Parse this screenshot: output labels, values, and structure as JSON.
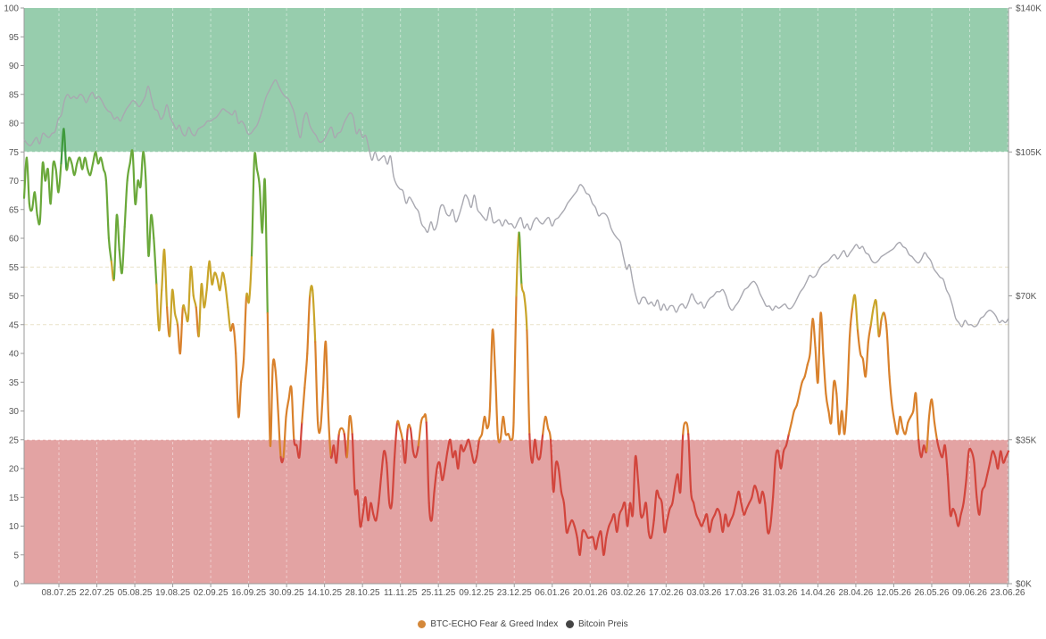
{
  "chart_data": {
    "type": "line",
    "title": "",
    "xlabel": "",
    "ylabel": "",
    "ylim": [
      0,
      100
    ],
    "y2lim": [
      0,
      140000
    ],
    "x_tick_labels": [
      "08.07.25",
      "22.07.25",
      "05.08.25",
      "19.08.25",
      "02.09.25",
      "16.09.25",
      "30.09.25",
      "14.10.25",
      "28.10.25",
      "11.11.25",
      "25.11.25",
      "09.12.25",
      "23.12.25",
      "06.01.26",
      "20.01.26",
      "03.02.26",
      "17.02.26",
      "03.03.26",
      "17.03.26",
      "31.03.26",
      "14.04.26",
      "28.04.26",
      "12.05.26",
      "26.05.26",
      "09.06.26",
      "23.06.26"
    ],
    "y_tick_labels": [
      "0",
      "5",
      "10",
      "15",
      "20",
      "25",
      "30",
      "35",
      "40",
      "45",
      "50",
      "55",
      "60",
      "65",
      "70",
      "75",
      "80",
      "85",
      "90",
      "95",
      "100"
    ],
    "y2_tick_labels": [
      "$0K",
      "$35K",
      "$70K",
      "$105K",
      "$140K"
    ],
    "zones": [
      {
        "from": 0,
        "to": 25,
        "color": "#e3a3a3"
      },
      {
        "from": 75,
        "to": 100,
        "color": "#97cdad"
      }
    ],
    "guides": [
      45,
      55
    ],
    "legend_position": "bottom-center",
    "series": [
      {
        "name": "BTC-ECHO Fear & Greed Index",
        "axis": "left",
        "marker_color": "#d4883a",
        "values": [
          67,
          74,
          66,
          65,
          68,
          64,
          63,
          73,
          70,
          72,
          66,
          73,
          72,
          68,
          73,
          79,
          72,
          74,
          73,
          71,
          73,
          74,
          72,
          74,
          72,
          71,
          73,
          75,
          73,
          74,
          72,
          70,
          60,
          56,
          53,
          64,
          58,
          54,
          62,
          70,
          73,
          75,
          66,
          70,
          69,
          75,
          70,
          57,
          64,
          60,
          52,
          44,
          51,
          58,
          48,
          43,
          51,
          47,
          45,
          40,
          48,
          47,
          46,
          55,
          50,
          48,
          43,
          52,
          48,
          51,
          56,
          52,
          54,
          53,
          51,
          54,
          52,
          48,
          44,
          45,
          40,
          29,
          35,
          39,
          50,
          49,
          57,
          74,
          72,
          69,
          61,
          70,
          47,
          24,
          38,
          37,
          30,
          22,
          22,
          29,
          32,
          34,
          25,
          24,
          22,
          28,
          34,
          40,
          50,
          51,
          42,
          28,
          27,
          34,
          42,
          29,
          22,
          24,
          21,
          26,
          27,
          26,
          22,
          29,
          26,
          16,
          16,
          10,
          12,
          15,
          11,
          14,
          12,
          11,
          14,
          19,
          23,
          21,
          14,
          14,
          22,
          28,
          27,
          25,
          21,
          27,
          27,
          23,
          22,
          24,
          28,
          29,
          28,
          14,
          11,
          16,
          20,
          21,
          18,
          20,
          23,
          25,
          22,
          23,
          20,
          24,
          23,
          24,
          25,
          23,
          21,
          22,
          25,
          26,
          29,
          27,
          30,
          44,
          37,
          26,
          25,
          29,
          26,
          26,
          25,
          28,
          50,
          61,
          52,
          50,
          44,
          26,
          21,
          25,
          22,
          22,
          26,
          29,
          27,
          25,
          16,
          21,
          20,
          16,
          14,
          9,
          10,
          11,
          10,
          8,
          5,
          9,
          9,
          8,
          8,
          8,
          6,
          8,
          9,
          5,
          8,
          10,
          11,
          12,
          9,
          12,
          13,
          14,
          10,
          14,
          12,
          22,
          18,
          12,
          12,
          14,
          9,
          8,
          11,
          16,
          15,
          14,
          9,
          11,
          13,
          14,
          17,
          19,
          16,
          26,
          28,
          26,
          16,
          14,
          12,
          11,
          10,
          11,
          12,
          9,
          11,
          12,
          13,
          12,
          9,
          12,
          10,
          11,
          12,
          14,
          16,
          14,
          12,
          13,
          14,
          15,
          17,
          16,
          14,
          16,
          14,
          9,
          10,
          15,
          22,
          23,
          20,
          23,
          24,
          26,
          28,
          30,
          31,
          33,
          35,
          36,
          38,
          40,
          46,
          41,
          35,
          47,
          40,
          33,
          30,
          28,
          35,
          33,
          26,
          30,
          26,
          32,
          43,
          48,
          50,
          44,
          40,
          39,
          36,
          42,
          45,
          48,
          49,
          43,
          46,
          47,
          44,
          36,
          31,
          28,
          26,
          29,
          27,
          26,
          28,
          29,
          30,
          33,
          25,
          22,
          24,
          23,
          29,
          32,
          28,
          25,
          23,
          22,
          24,
          19,
          12,
          13,
          12,
          10,
          12,
          14,
          18,
          23,
          23,
          21,
          15,
          12,
          16,
          17,
          19,
          21,
          23,
          22,
          20,
          23,
          21,
          22,
          23
        ]
      },
      {
        "name": "Bitcoin Preis",
        "axis": "right",
        "marker_color": "#444444",
        "values": [
          108000,
          107000,
          106500,
          107500,
          108500,
          107000,
          109500,
          109000,
          108500,
          109500,
          110000,
          113000,
          114000,
          117500,
          119000,
          118000,
          118500,
          118000,
          119000,
          118500,
          117000,
          118500,
          119500,
          118000,
          118500,
          117500,
          116000,
          115000,
          114500,
          113000,
          113500,
          112500,
          114000,
          115500,
          116500,
          117500,
          117000,
          116000,
          117000,
          118500,
          121000,
          118000,
          115500,
          115000,
          113000,
          114000,
          116500,
          113500,
          112000,
          110500,
          111500,
          109500,
          109000,
          111000,
          109500,
          109000,
          110500,
          111000,
          111500,
          112500,
          112500,
          113000,
          113500,
          114500,
          115500,
          115000,
          114500,
          114000,
          115000,
          112000,
          112500,
          111500,
          109500,
          109500,
          110500,
          111500,
          113500,
          116000,
          118500,
          120000,
          121500,
          122500,
          121000,
          119500,
          118500,
          118000,
          116500,
          114500,
          111000,
          108500,
          113000,
          114500,
          111500,
          110000,
          109000,
          107500,
          107500,
          108500,
          110000,
          111000,
          108500,
          109500,
          110000,
          112000,
          113500,
          114500,
          113500,
          109500,
          110500,
          108500,
          109000,
          106000,
          103000,
          105000,
          103000,
          103500,
          104000,
          102000,
          104000,
          99000,
          97000,
          96000,
          95500,
          92500,
          94000,
          93000,
          91500,
          90500,
          87500,
          86500,
          85500,
          88000,
          86000,
          87500,
          91500,
          92000,
          90000,
          89500,
          91000,
          88000,
          89500,
          92000,
          94500,
          93500,
          91500,
          94500,
          91000,
          90000,
          89000,
          88500,
          91500,
          88000,
          88000,
          88500,
          87000,
          88500,
          87500,
          87500,
          86500,
          88000,
          89000,
          86500,
          87500,
          86000,
          88000,
          89000,
          88000,
          87500,
          88500,
          89000,
          87000,
          88500,
          89000,
          90000,
          91000,
          92500,
          93500,
          94500,
          95500,
          97000,
          96500,
          95000,
          94500,
          92500,
          91500,
          89500,
          90000,
          90000,
          89000,
          86500,
          85000,
          84000,
          83000,
          79500,
          76500,
          77500,
          73500,
          70000,
          68000,
          69500,
          69500,
          68000,
          68500,
          67500,
          69000,
          66500,
          68000,
          66500,
          67500,
          67500,
          66000,
          67500,
          68000,
          67000,
          68500,
          70500,
          69000,
          68000,
          68500,
          67000,
          68500,
          69500,
          70000,
          71000,
          71000,
          71500,
          70000,
          67500,
          66500,
          67500,
          68500,
          70000,
          71500,
          72000,
          73000,
          73500,
          72500,
          70500,
          69000,
          67500,
          67500,
          66500,
          67500,
          67000,
          67500,
          68000,
          67000,
          67000,
          68000,
          69500,
          71000,
          72000,
          73500,
          75000,
          74500,
          75000,
          76500,
          77500,
          78000,
          78500,
          79500,
          80000,
          79000,
          80000,
          81000,
          79500,
          80500,
          81500,
          82500,
          81500,
          82000,
          80500,
          80000,
          78500,
          78000,
          78500,
          79500,
          80000,
          80500,
          81000,
          81500,
          82500,
          83000,
          82000,
          81500,
          80000,
          79500,
          78500,
          78000,
          79000,
          80500,
          79500,
          78500,
          76500,
          75500,
          74500,
          74000,
          71500,
          70000,
          67500,
          64500,
          63500,
          62500,
          64000,
          63000,
          63000,
          62500,
          63000,
          64500,
          65000,
          66000,
          66500,
          66000,
          65000,
          63500,
          64000,
          63500,
          64500
        ]
      }
    ]
  }
}
